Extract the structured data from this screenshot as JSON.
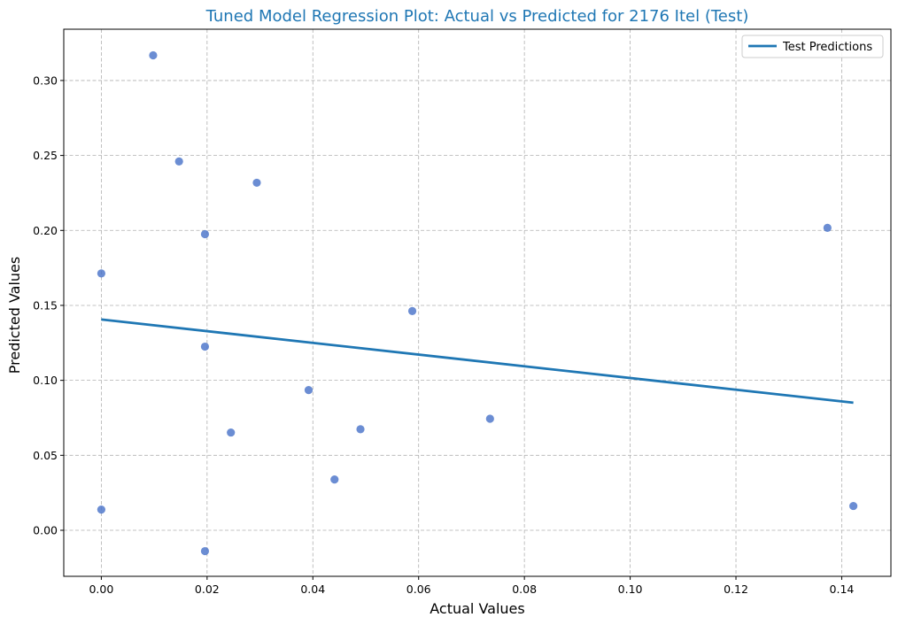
{
  "chart_data": {
    "type": "scatter",
    "title": "Tuned Model Regression Plot: Actual vs Predicted for 2176 Itel (Test)",
    "xlabel": "Actual Values",
    "ylabel": "Predicted Values",
    "xlim": [
      -0.0071,
      0.1493
    ],
    "ylim": [
      -0.0307,
      0.3342
    ],
    "xticks": [
      0.0,
      0.02,
      0.04,
      0.06,
      0.08,
      0.1,
      0.12,
      0.14
    ],
    "xtick_labels": [
      "0.00",
      "0.02",
      "0.04",
      "0.06",
      "0.08",
      "0.10",
      "0.12",
      "0.14"
    ],
    "yticks": [
      0.0,
      0.05,
      0.1,
      0.15,
      0.2,
      0.25,
      0.3
    ],
    "ytick_labels": [
      "0.00",
      "0.05",
      "0.10",
      "0.15",
      "0.20",
      "0.25",
      "0.30"
    ],
    "grid": true,
    "legend": {
      "position": "top-right",
      "entries": [
        "Test Predictions"
      ]
    },
    "points": [
      {
        "x": 0.0,
        "y": 0.1713
      },
      {
        "x": 0.0,
        "y": 0.0138
      },
      {
        "x": 0.0098,
        "y": 0.3168
      },
      {
        "x": 0.0147,
        "y": 0.246
      },
      {
        "x": 0.0196,
        "y": 0.1975
      },
      {
        "x": 0.0196,
        "y": 0.1225
      },
      {
        "x": 0.0196,
        "y": -0.0139
      },
      {
        "x": 0.0245,
        "y": 0.0652
      },
      {
        "x": 0.0294,
        "y": 0.2318
      },
      {
        "x": 0.0392,
        "y": 0.0935
      },
      {
        "x": 0.0441,
        "y": 0.0339
      },
      {
        "x": 0.049,
        "y": 0.0674
      },
      {
        "x": 0.0588,
        "y": 0.1462
      },
      {
        "x": 0.0735,
        "y": 0.0744
      },
      {
        "x": 0.1373,
        "y": 0.2017
      },
      {
        "x": 0.1422,
        "y": 0.0162
      }
    ],
    "regression_line": {
      "name": "Test Predictions",
      "x": [
        0.0,
        0.1422
      ],
      "y": [
        0.1406,
        0.0851
      ]
    },
    "colors": {
      "points": "#4a74c9",
      "line": "#1f77b4",
      "title": "#1f77b4",
      "grid": "#b0b0b0"
    }
  }
}
